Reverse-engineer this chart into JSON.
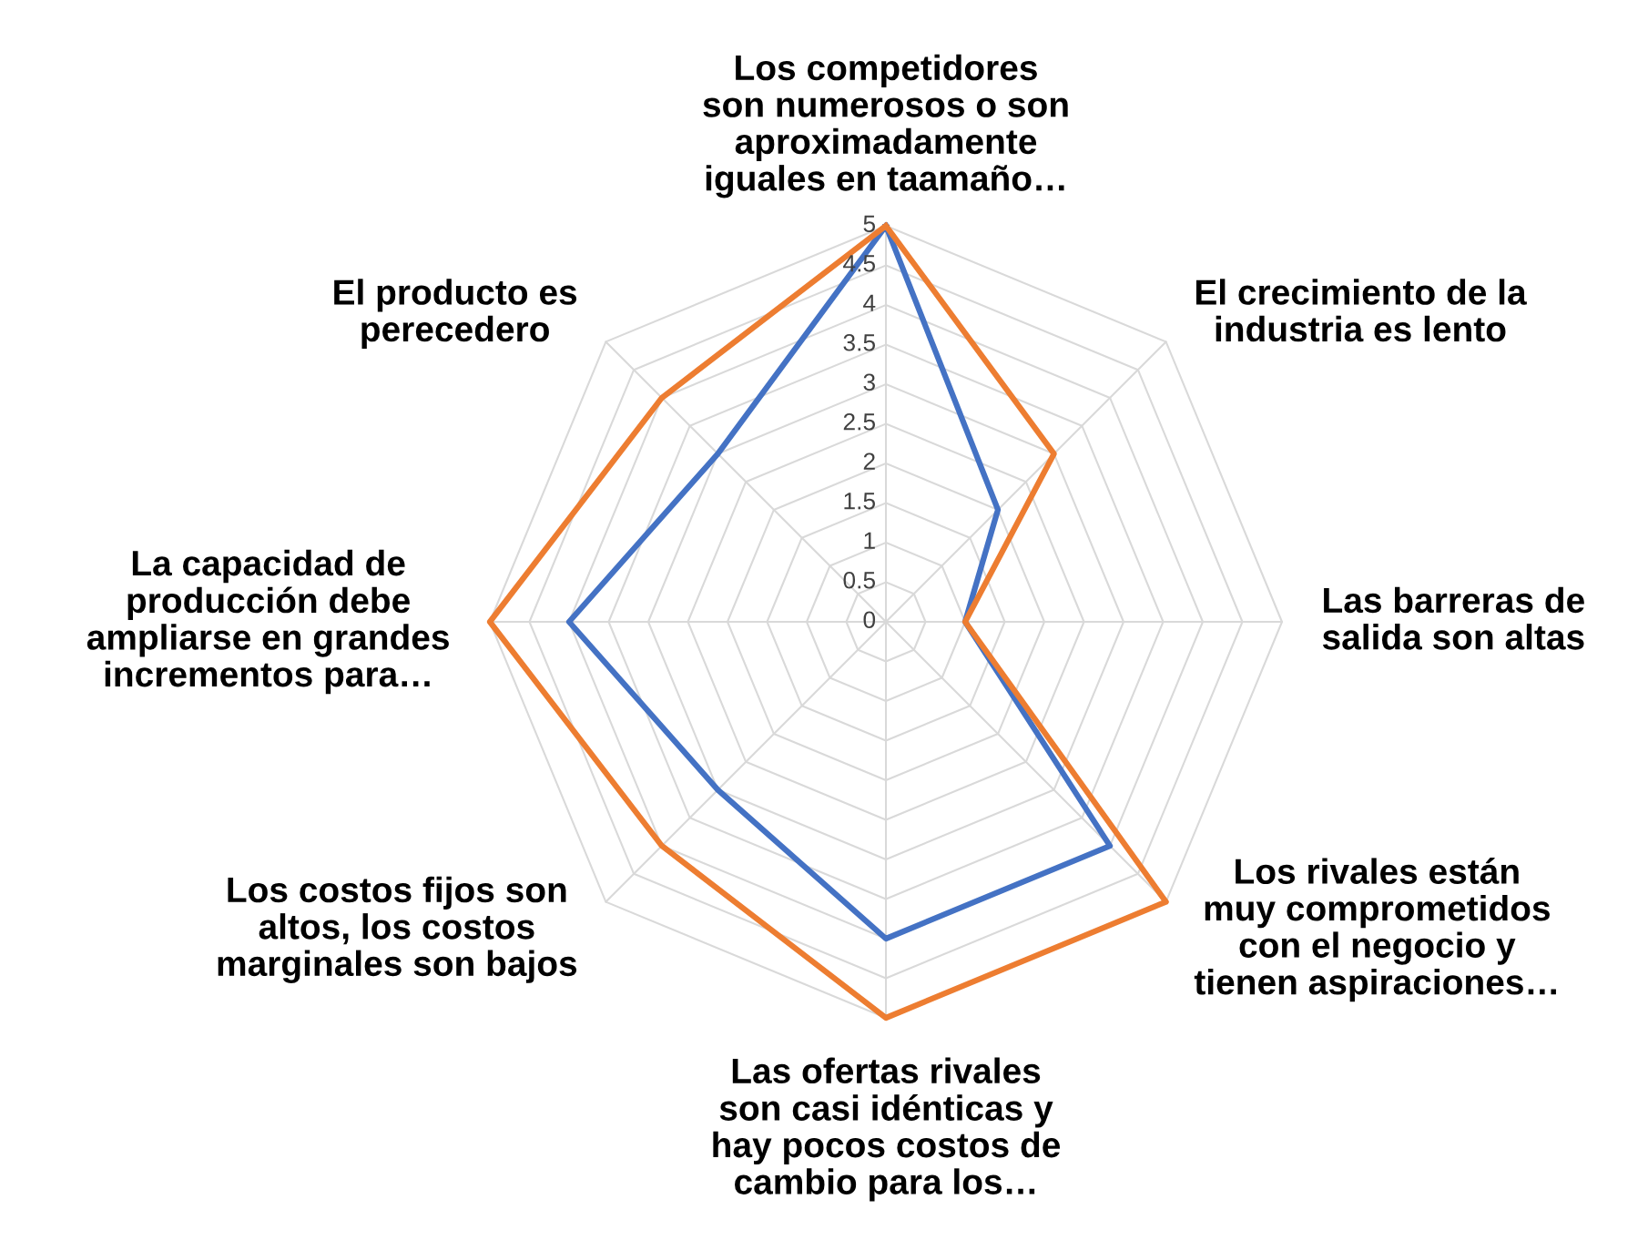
{
  "chart_data": {
    "type": "radar",
    "categories": [
      "Los competidores\nson numerosos o son\naproximadamente\niguales en taamaño…",
      "El crecimiento de la\nindustria es lento",
      "Las barreras de\nsalida son altas",
      "Los rivales están\nmuy comprometidos\ncon el negocio y\ntienen aspiraciones…",
      "Las ofertas rivales\nson casi idénticas y\nhay pocos costos de\ncambio para los…",
      "Los costos fijos son\naltos, los costos\nmarginales son bajos",
      "La capacidad de\nproducción debe\nampliarse en grandes\nincrementos para…",
      "El producto es\nperecedero"
    ],
    "series": [
      {
        "color": "#4472c4",
        "values": [
          5,
          2,
          1,
          4,
          4,
          3,
          4,
          3
        ]
      },
      {
        "color": "#ed7d31",
        "values": [
          5,
          3,
          1,
          5,
          5,
          4,
          5,
          4
        ]
      }
    ],
    "ylim": [
      0,
      5
    ],
    "yticks": [
      0,
      0.5,
      1,
      1.5,
      2,
      2.5,
      3,
      3.5,
      4,
      4.5,
      5
    ],
    "grid": true,
    "marker": "none",
    "line_style": "solid"
  }
}
